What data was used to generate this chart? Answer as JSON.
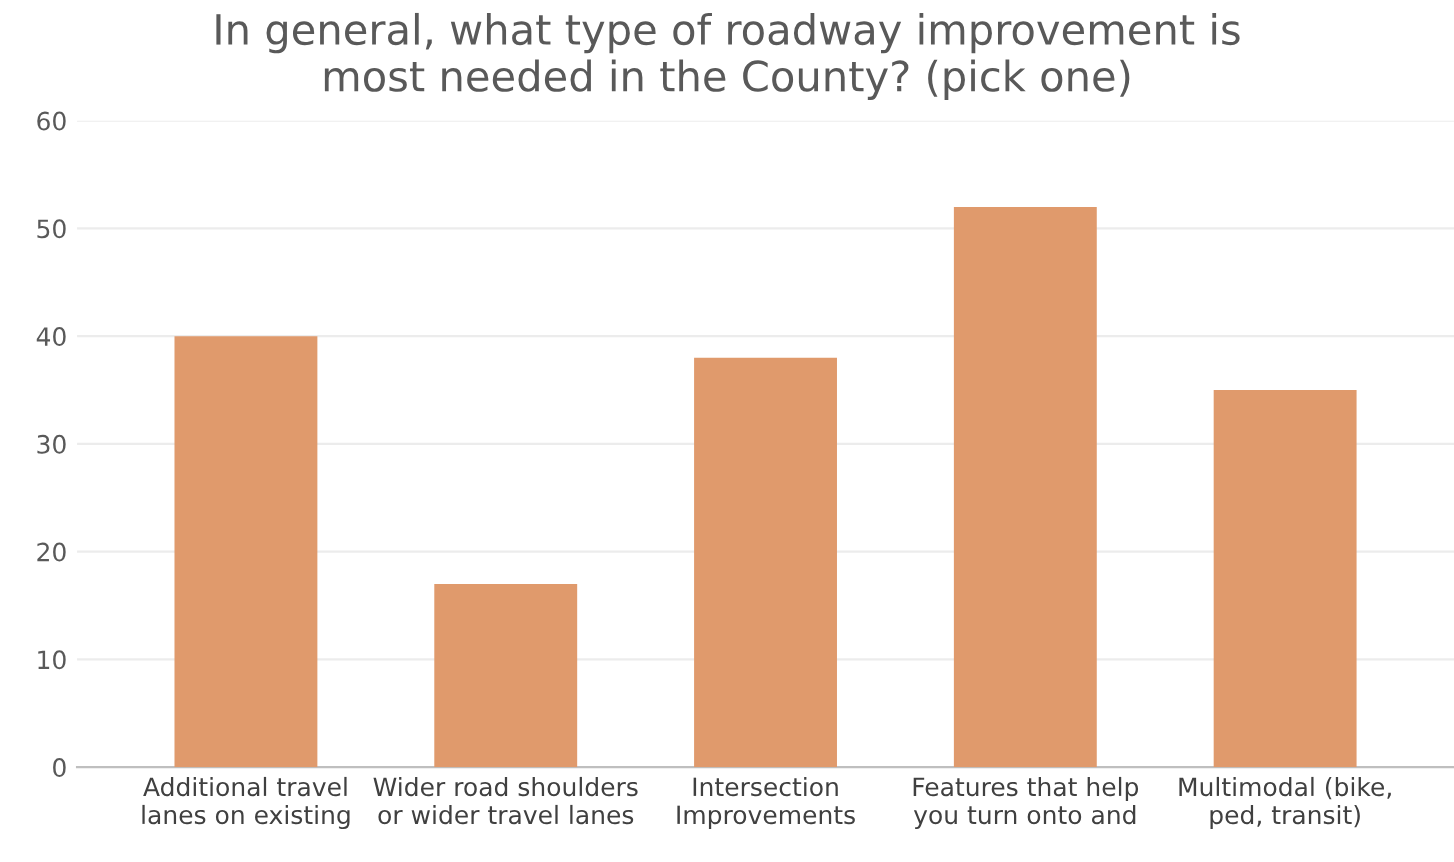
{
  "chart_data": {
    "type": "bar",
    "title": "In general, what type of roadway improvement is\nmost needed in the County? (pick one)",
    "categories": [
      "Additional travel\nlanes on existing",
      "Wider road shoulders\nor wider travel lanes",
      "Intersection\nImprovements",
      "Features that help\nyou turn onto and",
      "Multimodal (bike,\nped, transit)"
    ],
    "values": [
      40,
      17,
      38,
      52,
      35
    ],
    "color": "#e09a6c",
    "ylim": [
      0,
      60
    ],
    "yticks": [
      0,
      10,
      20,
      30,
      40,
      50,
      60
    ],
    "grid": "y"
  }
}
